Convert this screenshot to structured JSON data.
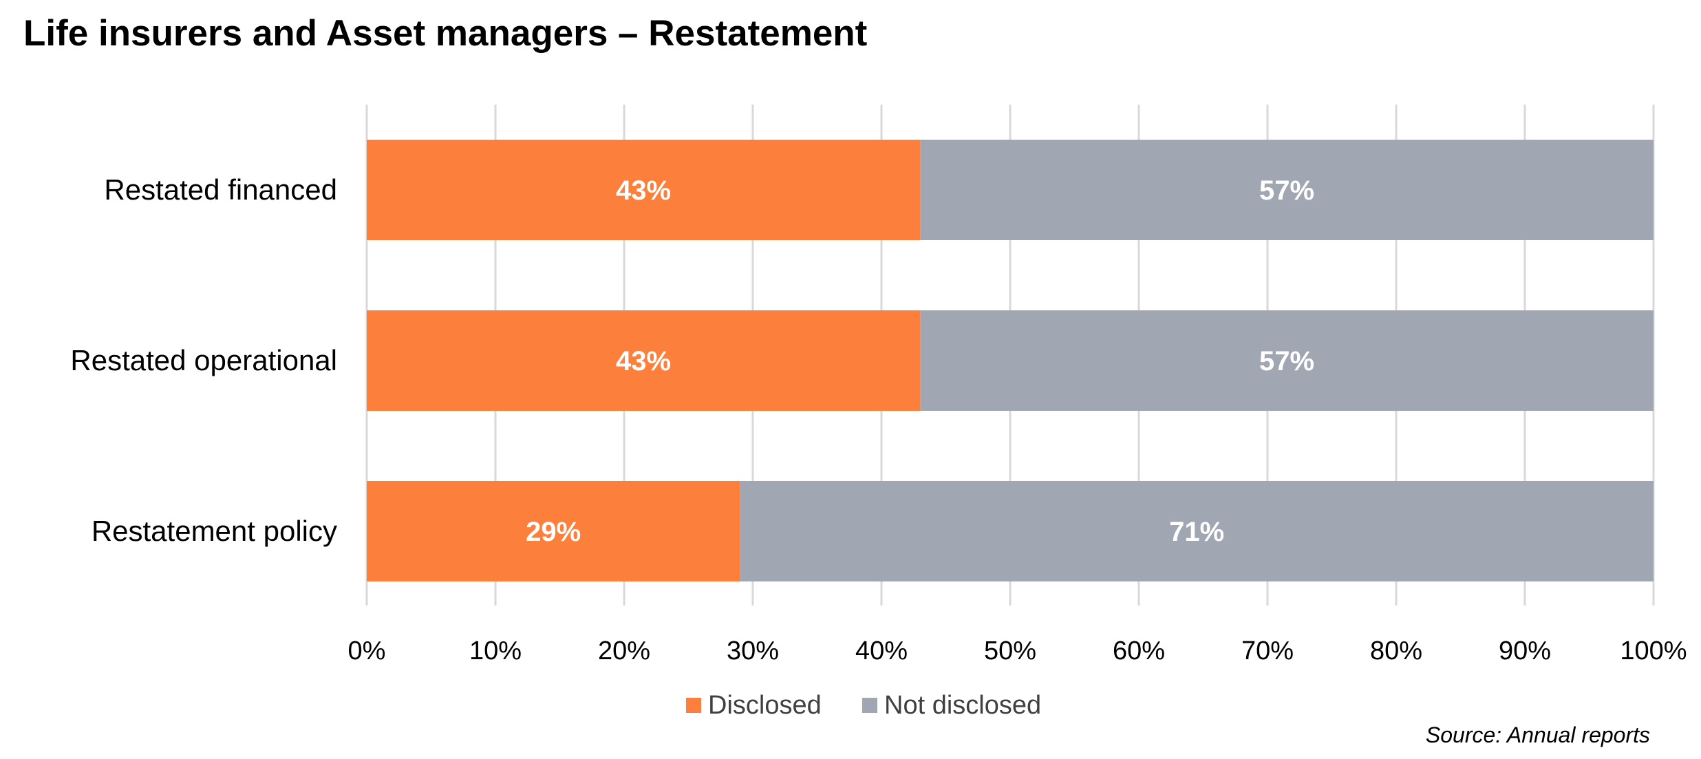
{
  "title": "Life insurers and Asset managers – Restatement",
  "source": "Source: Annual reports",
  "chart_data": {
    "type": "bar",
    "orientation": "horizontal",
    "stacked": true,
    "percent_stacked": true,
    "categories": [
      "Restated financed",
      "Restated operational",
      "Restatement policy"
    ],
    "series": [
      {
        "name": "Disclosed",
        "values": [
          43,
          43,
          29
        ],
        "labels": [
          "43%",
          "43%",
          "29%"
        ],
        "color": "#FD7F3C"
      },
      {
        "name": "Not disclosed",
        "values": [
          57,
          57,
          71
        ],
        "labels": [
          "57%",
          "57%",
          "71%"
        ],
        "color": "#A1A7B2"
      }
    ],
    "xlim": [
      0,
      100
    ],
    "xticks": [
      "0%",
      "10%",
      "20%",
      "30%",
      "40%",
      "50%",
      "60%",
      "70%",
      "80%",
      "90%",
      "100%"
    ],
    "grid": true,
    "legend": "bottom"
  }
}
